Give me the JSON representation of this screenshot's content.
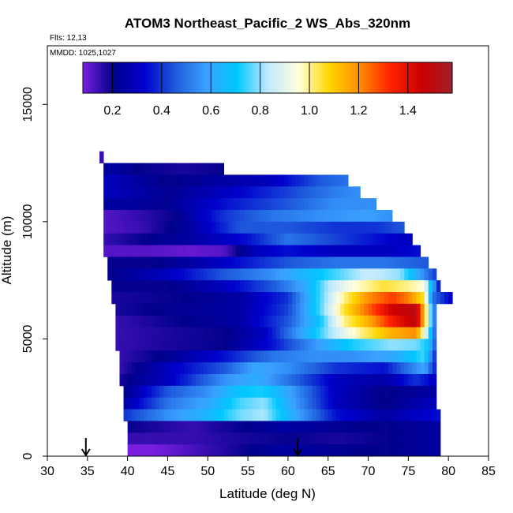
{
  "chart_data": {
    "type": "heatmap",
    "title": "ATOM3 Northeast_Pacific_2 WS_Abs_320nm",
    "flights_label": "Flts: 12,13",
    "dates_label": "MMDD: 1025,1027",
    "xlabel": "Latitude (deg N)",
    "ylabel": "Altitude (m)",
    "xlim": [
      30,
      85
    ],
    "ylim": [
      0,
      17500
    ],
    "x_ticks": [
      "30",
      "35",
      "40",
      "45",
      "50",
      "55",
      "60",
      "65",
      "70",
      "75",
      "80",
      "85"
    ],
    "y_ticks": [
      "0",
      "5000",
      "10000",
      "15000"
    ],
    "colorbar": {
      "range": [
        0.08,
        1.58
      ],
      "ticks": [
        "0.2",
        "0.4",
        "0.6",
        "0.8",
        "1.0",
        "1.2",
        "1.4"
      ],
      "colors": [
        "#7a1fe0",
        "#00008b",
        "#0000cd",
        "#1e5bdc",
        "#3aa0ff",
        "#00c8ff",
        "#bfe8ff",
        "#ffffe0",
        "#ffd700",
        "#ff8c00",
        "#ff2200",
        "#cc0000",
        "#a0202a"
      ]
    },
    "markers": [
      {
        "name": "arrow",
        "latitude": 34.8
      },
      {
        "name": "arrow",
        "latitude": 61.2
      }
    ],
    "rows": [
      {
        "alt": 12500,
        "lat_start": 36.5,
        "lat_end": 37.0,
        "knots": [
          [
            36.5,
            0.15
          ]
        ]
      },
      {
        "alt": 12000,
        "lat_start": 37.0,
        "lat_end": 52.0,
        "knots": [
          [
            37,
            0.25
          ],
          [
            42,
            0.2
          ],
          [
            47,
            0.18
          ],
          [
            52,
            0.2
          ]
        ]
      },
      {
        "alt": 11500,
        "lat_start": 37.0,
        "lat_end": 67.5,
        "knots": [
          [
            37,
            0.3
          ],
          [
            45,
            0.2
          ],
          [
            52,
            0.25
          ],
          [
            58,
            0.3
          ],
          [
            64,
            0.45
          ],
          [
            67.5,
            0.5
          ]
        ]
      },
      {
        "alt": 11000,
        "lat_start": 37.0,
        "lat_end": 69.0,
        "knots": [
          [
            37,
            0.3
          ],
          [
            45,
            0.22
          ],
          [
            52,
            0.3
          ],
          [
            60,
            0.42
          ],
          [
            66,
            0.52
          ],
          [
            69,
            0.55
          ]
        ]
      },
      {
        "alt": 10500,
        "lat_start": 37.0,
        "lat_end": 71.0,
        "knots": [
          [
            37,
            0.25
          ],
          [
            45,
            0.22
          ],
          [
            52,
            0.35
          ],
          [
            60,
            0.45
          ],
          [
            66,
            0.55
          ],
          [
            71,
            0.55
          ]
        ]
      },
      {
        "alt": 10000,
        "lat_start": 37.0,
        "lat_end": 73.0,
        "knots": [
          [
            37,
            0.12
          ],
          [
            41,
            0.15
          ],
          [
            46,
            0.2
          ],
          [
            52,
            0.4
          ],
          [
            58,
            0.5
          ],
          [
            64,
            0.55
          ],
          [
            70,
            0.58
          ],
          [
            73,
            0.55
          ]
        ]
      },
      {
        "alt": 9500,
        "lat_start": 37.0,
        "lat_end": 74.5,
        "knots": [
          [
            37,
            0.12
          ],
          [
            42,
            0.15
          ],
          [
            48,
            0.25
          ],
          [
            54,
            0.45
          ],
          [
            60,
            0.45
          ],
          [
            66,
            0.4
          ],
          [
            71,
            0.4
          ],
          [
            74.5,
            0.45
          ]
        ]
      },
      {
        "alt": 9000,
        "lat_start": 37.0,
        "lat_end": 75.5,
        "knots": [
          [
            37,
            0.15
          ],
          [
            42,
            0.2
          ],
          [
            48,
            0.25
          ],
          [
            55,
            0.35
          ],
          [
            60,
            0.5
          ],
          [
            66,
            0.42
          ],
          [
            71,
            0.35
          ],
          [
            75.5,
            0.3
          ]
        ]
      },
      {
        "alt": 8500,
        "lat_start": 37.0,
        "lat_end": 76.5,
        "knots": [
          [
            37,
            0.12
          ],
          [
            42,
            0.12
          ],
          [
            48,
            0.1
          ],
          [
            52,
            0.12
          ],
          [
            56,
            0.3
          ],
          [
            60,
            0.35
          ],
          [
            66,
            0.3
          ],
          [
            72,
            0.3
          ],
          [
            76.5,
            0.35
          ]
        ]
      },
      {
        "alt": 8000,
        "lat_start": 37.5,
        "lat_end": 77.5,
        "knots": [
          [
            37.5,
            0.2
          ],
          [
            43,
            0.2
          ],
          [
            48,
            0.25
          ],
          [
            54,
            0.35
          ],
          [
            60,
            0.45
          ],
          [
            66,
            0.5
          ],
          [
            72,
            0.5
          ],
          [
            77.5,
            0.45
          ]
        ]
      },
      {
        "alt": 7500,
        "lat_start": 37.5,
        "lat_end": 78.5,
        "knots": [
          [
            37.5,
            0.2
          ],
          [
            45,
            0.3
          ],
          [
            52,
            0.45
          ],
          [
            58,
            0.55
          ],
          [
            62,
            0.65
          ],
          [
            66,
            0.75
          ],
          [
            70,
            0.85
          ],
          [
            74,
            0.8
          ],
          [
            78.5,
            0.4
          ]
        ]
      },
      {
        "alt": 7000,
        "lat_start": 38.0,
        "lat_end": 79.0,
        "knots": [
          [
            38,
            0.2
          ],
          [
            45,
            0.2
          ],
          [
            52,
            0.3
          ],
          [
            58,
            0.45
          ],
          [
            62,
            0.6
          ],
          [
            65,
            0.82
          ],
          [
            68,
            0.95
          ],
          [
            72,
            1.05
          ],
          [
            75,
            1.0
          ],
          [
            77,
            0.95
          ],
          [
            79,
            0.3
          ]
        ]
      },
      {
        "alt": 6500,
        "lat_start": 38.0,
        "lat_end": 80.5,
        "knots": [
          [
            38,
            0.18
          ],
          [
            46,
            0.2
          ],
          [
            54,
            0.25
          ],
          [
            60,
            0.4
          ],
          [
            64,
            0.75
          ],
          [
            67,
            1.0
          ],
          [
            70,
            1.2
          ],
          [
            73,
            1.3
          ],
          [
            75,
            1.22
          ],
          [
            77,
            1.05
          ],
          [
            78,
            0.5
          ],
          [
            80.5,
            0.3
          ]
        ]
      },
      {
        "alt": 6000,
        "lat_start": 38.5,
        "lat_end": 78.5,
        "knots": [
          [
            38.5,
            0.18
          ],
          [
            46,
            0.22
          ],
          [
            54,
            0.25
          ],
          [
            60,
            0.42
          ],
          [
            64,
            0.75
          ],
          [
            67,
            1.05
          ],
          [
            70,
            1.25
          ],
          [
            73,
            1.45
          ],
          [
            76,
            1.5
          ],
          [
            77.5,
            0.9
          ],
          [
            78.5,
            0.4
          ]
        ]
      },
      {
        "alt": 5500,
        "lat_start": 38.5,
        "lat_end": 78.5,
        "knots": [
          [
            38.5,
            0.15
          ],
          [
            46,
            0.2
          ],
          [
            54,
            0.25
          ],
          [
            60,
            0.45
          ],
          [
            64,
            0.7
          ],
          [
            67,
            1.0
          ],
          [
            70,
            1.15
          ],
          [
            73,
            1.35
          ],
          [
            76,
            1.5
          ],
          [
            77.5,
            0.9
          ],
          [
            78.5,
            0.4
          ]
        ]
      },
      {
        "alt": 5000,
        "lat_start": 38.5,
        "lat_end": 78.5,
        "knots": [
          [
            38.5,
            0.15
          ],
          [
            46,
            0.18
          ],
          [
            52,
            0.2
          ],
          [
            57,
            0.3
          ],
          [
            61,
            0.55
          ],
          [
            65,
            0.8
          ],
          [
            69,
            1.0
          ],
          [
            73,
            1.15
          ],
          [
            76,
            1.2
          ],
          [
            77.5,
            0.8
          ],
          [
            78.5,
            0.4
          ]
        ]
      },
      {
        "alt": 4500,
        "lat_start": 38.5,
        "lat_end": 78.5,
        "knots": [
          [
            38.5,
            0.15
          ],
          [
            45,
            0.18
          ],
          [
            52,
            0.2
          ],
          [
            58,
            0.35
          ],
          [
            63,
            0.55
          ],
          [
            68,
            0.72
          ],
          [
            73,
            0.8
          ],
          [
            76,
            0.78
          ],
          [
            77.5,
            0.7
          ],
          [
            78.5,
            0.4
          ]
        ]
      },
      {
        "alt": 4000,
        "lat_start": 39.0,
        "lat_end": 78.5,
        "knots": [
          [
            39,
            0.15
          ],
          [
            45,
            0.22
          ],
          [
            52,
            0.35
          ],
          [
            58,
            0.5
          ],
          [
            63,
            0.55
          ],
          [
            68,
            0.55
          ],
          [
            73,
            0.6
          ],
          [
            77,
            0.75
          ],
          [
            78.5,
            0.35
          ]
        ]
      },
      {
        "alt": 3500,
        "lat_start": 39.0,
        "lat_end": 78.5,
        "knots": [
          [
            39,
            0.15
          ],
          [
            45,
            0.3
          ],
          [
            52,
            0.45
          ],
          [
            56,
            0.6
          ],
          [
            60,
            0.55
          ],
          [
            66,
            0.4
          ],
          [
            72,
            0.35
          ],
          [
            77,
            0.6
          ],
          [
            78.5,
            0.35
          ]
        ]
      },
      {
        "alt": 3000,
        "lat_start": 39.0,
        "lat_end": 78.5,
        "knots": [
          [
            39,
            0.18
          ],
          [
            45,
            0.3
          ],
          [
            52,
            0.55
          ],
          [
            56,
            0.62
          ],
          [
            60,
            0.5
          ],
          [
            66,
            0.3
          ],
          [
            72,
            0.25
          ],
          [
            76,
            0.4
          ],
          [
            78.5,
            0.3
          ]
        ]
      },
      {
        "alt": 2500,
        "lat_start": 39.5,
        "lat_end": 78.5,
        "knots": [
          [
            39.5,
            0.2
          ],
          [
            45,
            0.45
          ],
          [
            50,
            0.55
          ],
          [
            54,
            0.7
          ],
          [
            57,
            0.72
          ],
          [
            60,
            0.6
          ],
          [
            66,
            0.3
          ],
          [
            72,
            0.2
          ],
          [
            78.5,
            0.25
          ]
        ]
      },
      {
        "alt": 2000,
        "lat_start": 39.5,
        "lat_end": 78.5,
        "knots": [
          [
            39.5,
            0.25
          ],
          [
            45,
            0.5
          ],
          [
            50,
            0.6
          ],
          [
            54,
            0.75
          ],
          [
            57,
            0.8
          ],
          [
            60,
            0.62
          ],
          [
            66,
            0.3
          ],
          [
            72,
            0.2
          ],
          [
            78.5,
            0.3
          ]
        ]
      },
      {
        "alt": 1500,
        "lat_start": 39.5,
        "lat_end": 79.0,
        "knots": [
          [
            39.5,
            0.4
          ],
          [
            45,
            0.55
          ],
          [
            50,
            0.65
          ],
          [
            54,
            0.78
          ],
          [
            57,
            0.82
          ],
          [
            60,
            0.65
          ],
          [
            66,
            0.35
          ],
          [
            72,
            0.25
          ],
          [
            79,
            0.35
          ]
        ]
      },
      {
        "alt": 1000,
        "lat_start": 40.0,
        "lat_end": 79.0,
        "knots": [
          [
            40,
            0.2
          ],
          [
            48,
            0.15
          ],
          [
            54,
            0.2
          ],
          [
            60,
            0.25
          ],
          [
            66,
            0.22
          ],
          [
            72,
            0.2
          ],
          [
            79,
            0.25
          ]
        ]
      },
      {
        "alt": 500,
        "lat_start": 40.0,
        "lat_end": 79.0,
        "knots": [
          [
            40,
            0.15
          ],
          [
            48,
            0.15
          ],
          [
            54,
            0.18
          ],
          [
            60,
            0.2
          ],
          [
            66,
            0.18
          ],
          [
            72,
            0.2
          ],
          [
            79,
            0.25
          ]
        ]
      },
      {
        "alt": 0,
        "lat_start": 40.0,
        "lat_end": 79.0,
        "knots": [
          [
            40,
            0.05
          ],
          [
            45,
            0.1
          ],
          [
            50,
            0.15
          ],
          [
            55,
            0.2
          ],
          [
            60,
            0.25
          ],
          [
            66,
            0.22
          ],
          [
            72,
            0.2
          ],
          [
            79,
            0.25
          ]
        ]
      }
    ]
  }
}
